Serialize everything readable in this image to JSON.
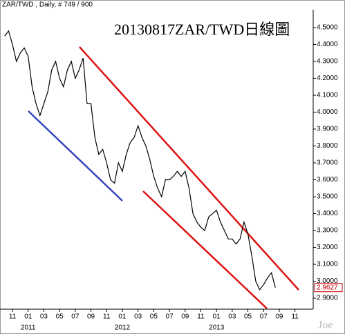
{
  "chart_data": {
    "type": "line",
    "title": "ZAR/TWD , Daily, # 749 / 900",
    "annotation": "20130817ZAR/TWD日線圖",
    "watermark": "Joe",
    "categories": [
      null,
      null,
      "11",
      null,
      null,
      null,
      "01",
      null,
      null,
      null,
      "03",
      null,
      null,
      null,
      "05",
      null,
      null,
      null,
      "07",
      null,
      null,
      null,
      "09",
      null,
      null,
      null,
      "11",
      null,
      null,
      null,
      "01",
      null,
      null,
      null,
      "03",
      null,
      null,
      null,
      "05",
      null,
      null,
      null,
      "07",
      null,
      null,
      null,
      "09",
      null,
      null,
      null,
      "11",
      null,
      null,
      null,
      "01",
      null,
      null,
      null,
      "03",
      null,
      null,
      null,
      "05",
      null,
      null,
      null,
      "07",
      null,
      null,
      null,
      "09",
      null,
      null,
      null,
      "11",
      null,
      null,
      null
    ],
    "years": [
      "2011",
      "2012",
      "2013"
    ],
    "series": [
      {
        "name": "ZAR/TWD",
        "color": "#000000",
        "values": [
          4.45,
          4.48,
          4.4,
          4.3,
          4.35,
          4.38,
          4.33,
          4.15,
          4.05,
          3.98,
          4.05,
          4.12,
          4.25,
          4.3,
          4.2,
          4.15,
          4.25,
          4.3,
          4.2,
          4.25,
          4.32,
          4.05,
          4.05,
          3.85,
          3.75,
          3.78,
          3.7,
          3.6,
          3.58,
          3.7,
          3.65,
          3.75,
          3.82,
          3.85,
          3.92,
          3.85,
          3.8,
          3.72,
          3.62,
          3.55,
          3.5,
          3.6,
          3.6,
          3.62,
          3.65,
          3.62,
          3.65,
          3.55,
          3.4,
          3.35,
          3.32,
          3.3,
          3.38,
          3.4,
          3.42,
          3.35,
          3.3,
          3.25,
          3.25,
          3.22,
          3.25,
          3.35,
          3.28,
          3.15,
          3.0,
          2.95,
          2.98,
          3.02,
          3.05,
          2.9627,
          null,
          null,
          null,
          null,
          null,
          null,
          null,
          null
        ]
      }
    ],
    "last_value_color": "#cc0000",
    "ylim": [
      2.835,
      4.606
    ],
    "yticks": [
      {
        "value": 4.5,
        "label": "4.5000"
      },
      {
        "value": 4.4,
        "label": "4.4000"
      },
      {
        "value": 4.3,
        "label": "4.3000"
      },
      {
        "value": 4.2,
        "label": "4.2000"
      },
      {
        "value": 4.1,
        "label": "4.1000"
      },
      {
        "value": 4.0,
        "label": "4.0000"
      },
      {
        "value": 3.9,
        "label": "3.9000"
      },
      {
        "value": 3.8,
        "label": "3.8000"
      },
      {
        "value": 3.7,
        "label": "3.7000"
      },
      {
        "value": 3.6,
        "label": "3.6000"
      },
      {
        "value": 3.5,
        "label": "3.5000"
      },
      {
        "value": 3.4,
        "label": "3.4000"
      },
      {
        "value": 3.3,
        "label": "3.3000"
      },
      {
        "value": 3.2,
        "label": "3.2000"
      },
      {
        "value": 3.1,
        "label": "3.1000"
      },
      {
        "value": 3.0,
        "label": "3.0000"
      },
      {
        "value": 2.9,
        "label": "2.9000"
      }
    ],
    "grid": false
  }
}
